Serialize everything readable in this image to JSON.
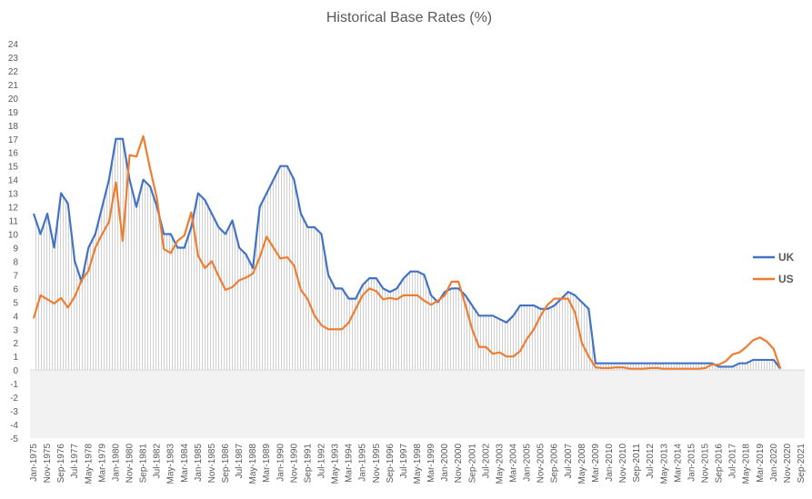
{
  "chart_data": {
    "type": "line",
    "title": "Historical Base Rates (%)",
    "categories": [
      "Jan-1975",
      null,
      "Nov-1975",
      null,
      "Sep-1976",
      null,
      "Jul-1977",
      null,
      "May-1978",
      null,
      "Mar-1979",
      null,
      "Jan-1980",
      null,
      "Nov-1980",
      null,
      "Sep-1981",
      null,
      "Jul-1982",
      null,
      "May-1983",
      null,
      "Mar-1984",
      null,
      "Jan-1985",
      null,
      "Nov-1985",
      null,
      "Sep-1986",
      null,
      "Jul-1987",
      null,
      "May-1988",
      null,
      "Mar-1989",
      null,
      "Jan-1990",
      null,
      "Nov-1990",
      null,
      "Sep-1991",
      null,
      "Jul-1992",
      null,
      "May-1993",
      null,
      "Mar-1994",
      null,
      "Jan-1995",
      null,
      "Nov-1995",
      null,
      "Sep-1996",
      null,
      "Jul-1997",
      null,
      "May-1998",
      null,
      "Mar-1999",
      null,
      "Jan-2000",
      null,
      "Nov-2000",
      null,
      "Sep-2001",
      null,
      "Jul-2002",
      null,
      "May-2003",
      null,
      "Mar-2004",
      null,
      "Jan-2005",
      null,
      "Nov-2005",
      null,
      "Sep-2006",
      null,
      "Jul-2007",
      null,
      "May-2008",
      null,
      "Mar-2009",
      null,
      "Jan-2010",
      null,
      "Nov-2010",
      null,
      "Sep-2011",
      null,
      "Jul-2012",
      null,
      "May-2013",
      null,
      "Mar-2014",
      null,
      "Jan-2015",
      null,
      "Nov-2015",
      null,
      "Sep-2016",
      null,
      "Jul-2017",
      null,
      "May-2018",
      null,
      "Mar-2019",
      null,
      "Jan-2020",
      null,
      "Nov-2020",
      null,
      "Sep-2021"
    ],
    "series": [
      {
        "name": "UK",
        "color": "#4472c4",
        "values": [
          11.5,
          10,
          11.5,
          9,
          13,
          12.25,
          8,
          6.5,
          9,
          10,
          12,
          14,
          17,
          17,
          14,
          12,
          14,
          13.5,
          12,
          10,
          10,
          9,
          9,
          10.5,
          13,
          12.5,
          11.5,
          10.5,
          10,
          11,
          9,
          8.5,
          7.5,
          12,
          13,
          14,
          15,
          15,
          14,
          11.5,
          10.5,
          10.5,
          10,
          7,
          6,
          6,
          5.25,
          5.25,
          6.25,
          6.75,
          6.75,
          6,
          5.75,
          6,
          6.75,
          7.25,
          7.25,
          7,
          5.5,
          5,
          5.75,
          6,
          6,
          5.5,
          4.75,
          4,
          4,
          4,
          3.75,
          3.5,
          4,
          4.75,
          4.75,
          4.75,
          4.5,
          4.5,
          4.75,
          5.25,
          5.75,
          5.5,
          5,
          4.5,
          0.5,
          0.5,
          0.5,
          0.5,
          0.5,
          0.5,
          0.5,
          0.5,
          0.5,
          0.5,
          0.5,
          0.5,
          0.5,
          0.5,
          0.5,
          0.5,
          0.5,
          0.5,
          0.25,
          0.25,
          0.25,
          0.5,
          0.5,
          0.75,
          0.75,
          0.75,
          0.75,
          0.1,
          null,
          null,
          null
        ]
      },
      {
        "name": "US",
        "color": "#ed7d31",
        "values": [
          3.8,
          5.5,
          5.2,
          4.9,
          5.3,
          4.6,
          5.4,
          6.6,
          7.3,
          9,
          10,
          10.9,
          13.8,
          9.5,
          15.8,
          15.7,
          17.2,
          14.8,
          12.6,
          8.9,
          8.6,
          9.5,
          9.9,
          11.6,
          8.4,
          7.5,
          8,
          6.9,
          5.9,
          6.1,
          6.6,
          6.8,
          7.1,
          8.3,
          9.8,
          9,
          8.2,
          8.3,
          7.7,
          5.9,
          5.2,
          4,
          3.3,
          3,
          3,
          3,
          3.5,
          4.5,
          5.5,
          6,
          5.8,
          5.2,
          5.3,
          5.2,
          5.5,
          5.5,
          5.5,
          5.1,
          4.8,
          5.1,
          5.5,
          6.5,
          6.5,
          4.8,
          3,
          1.7,
          1.7,
          1.2,
          1.3,
          1,
          1,
          1.4,
          2.3,
          3,
          4,
          4.8,
          5.25,
          5.25,
          5.25,
          4.25,
          2,
          1,
          0.2,
          0.15,
          0.15,
          0.2,
          0.2,
          0.1,
          0.1,
          0.1,
          0.15,
          0.15,
          0.1,
          0.1,
          0.1,
          0.1,
          0.1,
          0.1,
          0.15,
          0.4,
          0.4,
          0.65,
          1.15,
          1.3,
          1.7,
          2.2,
          2.4,
          2.1,
          1.55,
          0.1,
          null,
          null,
          null
        ]
      }
    ],
    "ylim": [
      -5,
      24
    ],
    "yticks": [
      -5,
      -4,
      -3,
      -2,
      -1,
      0,
      1,
      2,
      3,
      4,
      5,
      6,
      7,
      8,
      9,
      10,
      11,
      12,
      13,
      14,
      15,
      16,
      17,
      18,
      19,
      20,
      21,
      22,
      23,
      24
    ],
    "legend": "right"
  }
}
